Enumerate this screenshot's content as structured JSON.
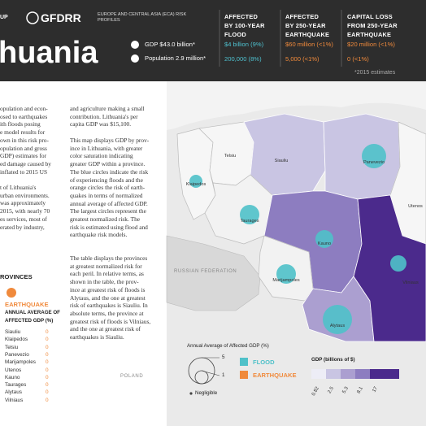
{
  "header": {
    "group_fragment": "UP",
    "org": "GFDRR",
    "series": "EUROPE AND CENTRAL ASIA (ECA) RISK PROFILES",
    "country": "huania",
    "gdp": "GDP $43.0 billion*",
    "population": "Population 2.9 million*",
    "note": "*2015 estimates",
    "columns": [
      {
        "title": [
          "AFFECTED",
          "BY 100-YEAR",
          "FLOOD"
        ],
        "values": [
          "$4 billion (9%)",
          "200,000 (8%)"
        ]
      },
      {
        "title": [
          "AFFECTED",
          "BY 250-YEAR",
          "EARTHQUAKE"
        ],
        "values": [
          "$60 million (<1%)",
          "5,000 (<1%)"
        ]
      },
      {
        "title": [
          "CAPITAL LOSS",
          "FROM 250-YEAR",
          "EARTHQUAKE"
        ],
        "values": [
          "$20 million (<1%)",
          "0 (<1%)"
        ]
      }
    ]
  },
  "intro": {
    "left_lines": [
      "opulation and econ-",
      "osed to earthquakes",
      "ith floods posing",
      "e model results for",
      "own in this risk pro-",
      "opulation and gross",
      "GDP) estimates for",
      "ed damage caused by",
      "inflated to 2015 US",
      "",
      "t of Lithuania's",
      "urban environments.",
      "was approximately",
      "2015, with nearly 70",
      "es services, most of",
      "erated by industry,"
    ],
    "right_lines": [
      "and agriculture making a small",
      "contribution. Lithuania's per",
      "capita GDP was $15,100."
    ]
  },
  "map_text": {
    "p1": [
      "This map displays GDP by prov-",
      "ince in Lithuania, with greater",
      "color saturation indicating",
      "greater GDP within a province.",
      "The blue circles indicate the risk",
      "of experiencing floods and the",
      "orange circles the risk of earth-",
      "quakes in terms of normalized",
      "annual average of affected GDP.",
      "The largest circles represent the",
      "greatest normalized risk. The",
      "risk is estimated using flood and",
      "earthquake risk models."
    ],
    "p2": [
      "The table displays the provinces",
      "at greatest normalized risk for",
      "each peril. In relative terms, as",
      "shown in the table, the prov-",
      "ince at greatest risk of floods is",
      "Alytaus, and the one at greatest",
      "risk of earthquakes is Siauliu. In",
      "absolute terms, the province at",
      "greatest risk of floods is Vilniaus,",
      "and the one at greatest risk of",
      "earthquakes is Siauliu."
    ]
  },
  "table": {
    "heading": "ROVINCES",
    "peril": "EARTHQUAKE",
    "measure": [
      "ANNUAL AVERAGE OF",
      "AFFECTED GDP (%)"
    ],
    "rows": [
      [
        "Siauliu",
        0
      ],
      [
        "Klaipedos",
        0
      ],
      [
        "Telsiu",
        0
      ],
      [
        "Panevezio",
        0
      ],
      [
        "Marijampoles",
        0
      ],
      [
        "Utenos",
        0
      ],
      [
        "Kauno",
        0
      ],
      [
        "Taurages",
        0
      ],
      [
        "Alytaus",
        0
      ],
      [
        "Vilniaus",
        0
      ]
    ]
  },
  "map": {
    "labels": [
      "Telsiu",
      "Siauliu",
      "Panevezio",
      "Klaipedos",
      "Taurages",
      "Kauno",
      "Utenos",
      "Marijampoles",
      "Alytaus",
      "Vilniaus"
    ],
    "countries": [
      "RUSSIAN FEDERATION",
      "POLAND"
    ]
  },
  "legend": {
    "size_title": "Annual Average of Affected GDP (%)",
    "sizes": [
      "5",
      "1"
    ],
    "negligible": "Negligible",
    "flood": "FLOOD",
    "earthquake": "EARTHQUAKE",
    "gdp_title": "GDP (billions of $)",
    "gdp_ticks": [
      "0.82",
      "2.5",
      "5.3",
      "8.1",
      "17"
    ]
  }
}
